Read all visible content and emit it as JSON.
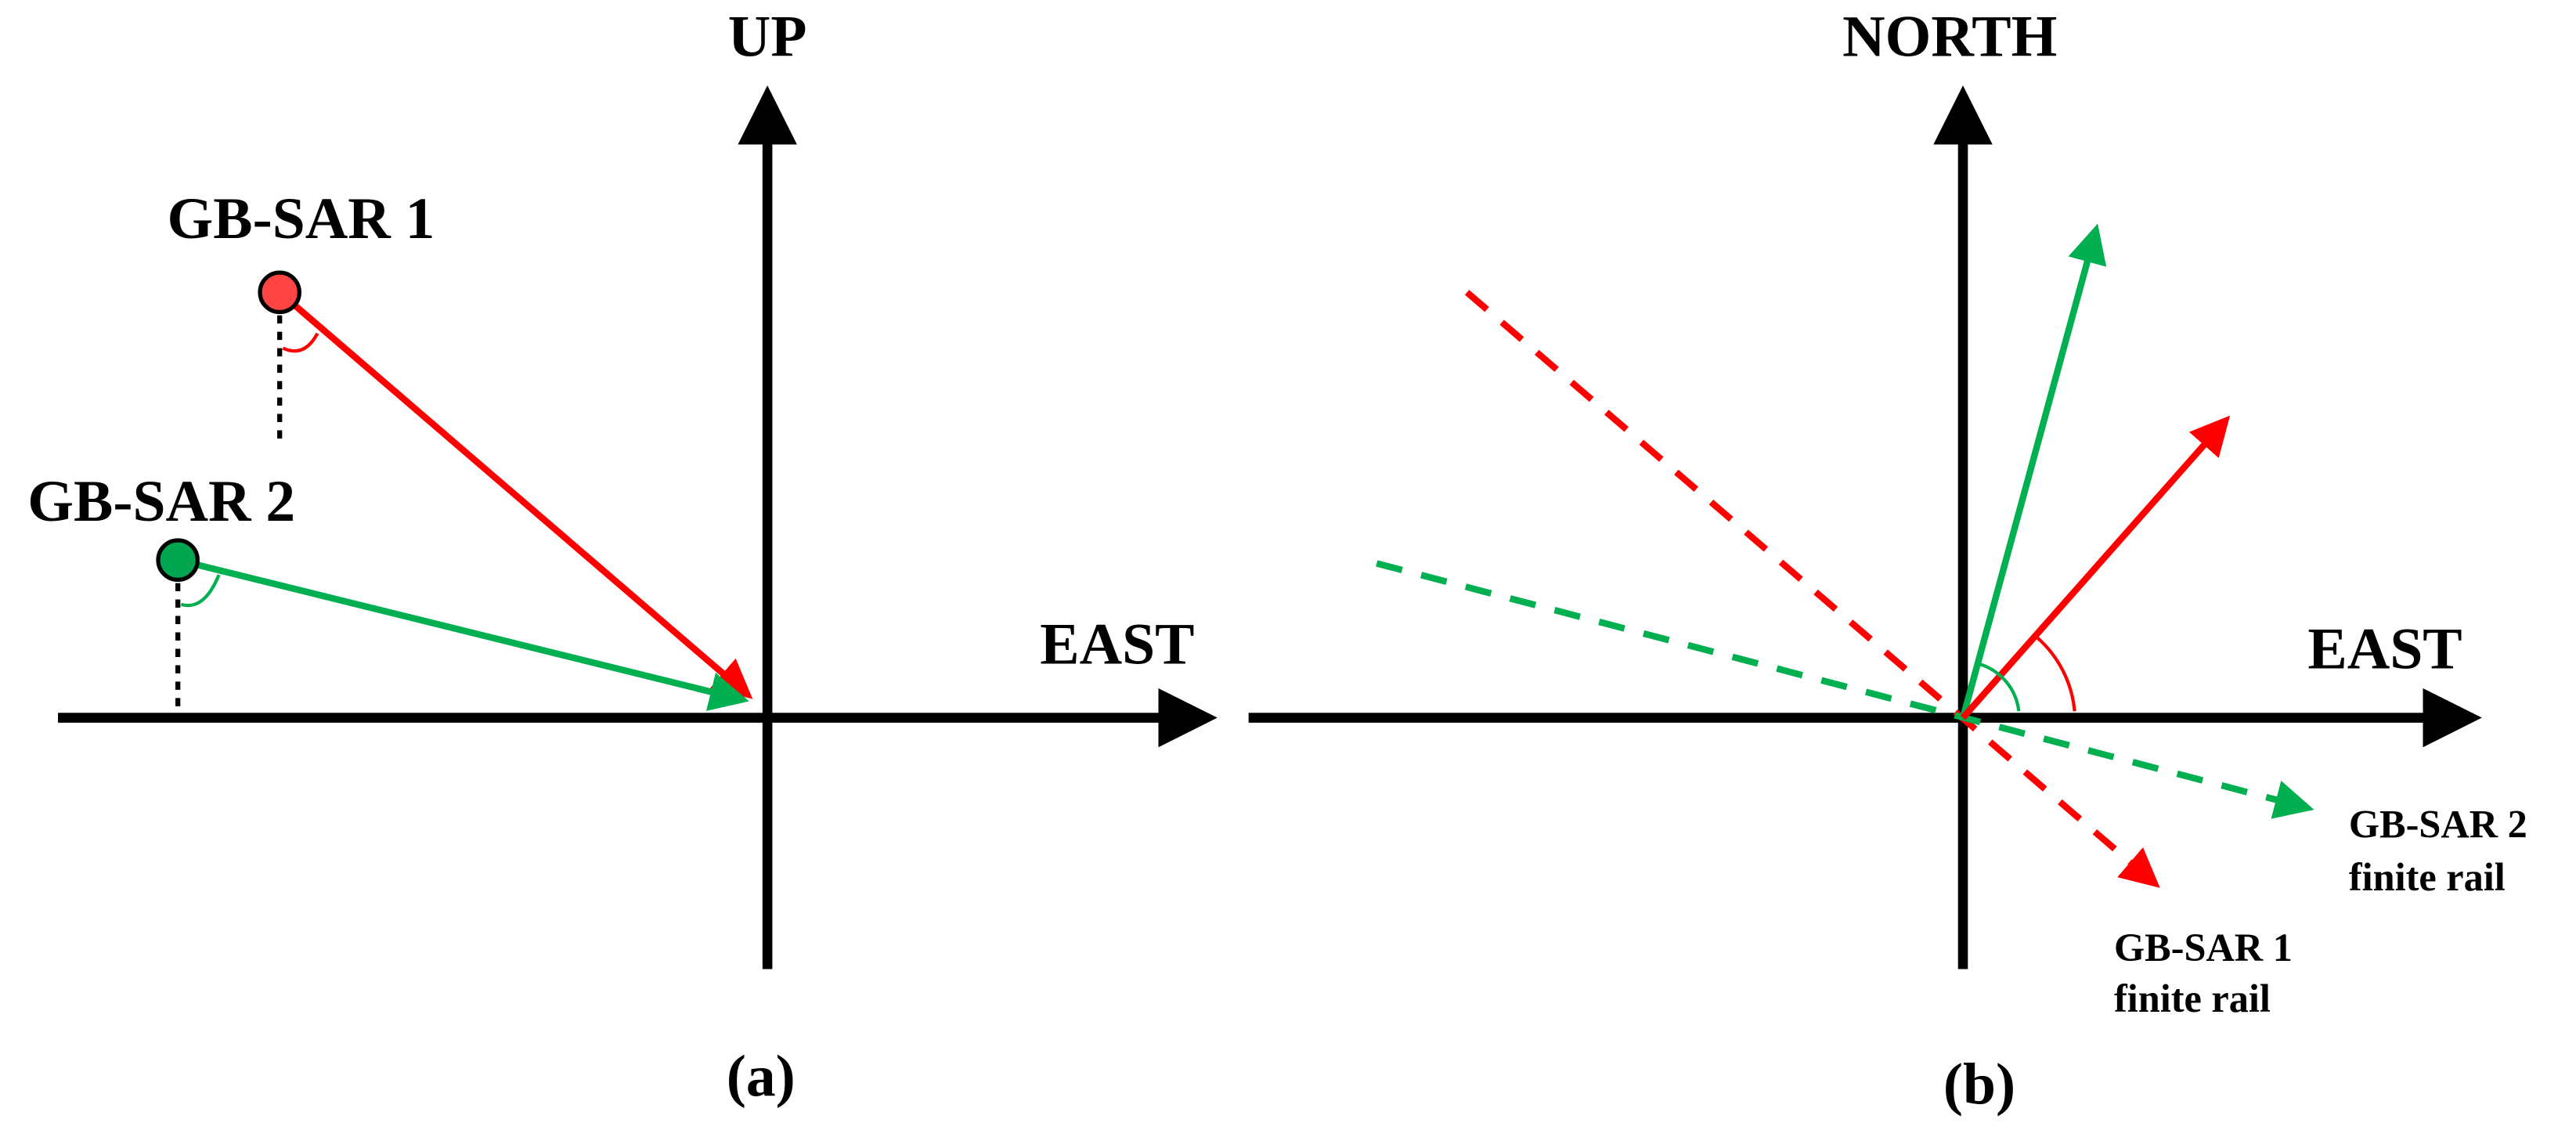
{
  "panels": [
    {
      "label": "(a)",
      "vertical_axis": "UP",
      "horizontal_axis": "EAST",
      "sensors": [
        "GB-SAR 1",
        "GB-SAR 2"
      ]
    },
    {
      "label": "(b)",
      "vertical_axis": "NORTH",
      "horizontal_axis": "EAST",
      "rails": [
        {
          "name": "GB-SAR 2",
          "note": "finite rail"
        },
        {
          "name": "GB-SAR 1",
          "note": "finite rail"
        }
      ]
    }
  ]
}
